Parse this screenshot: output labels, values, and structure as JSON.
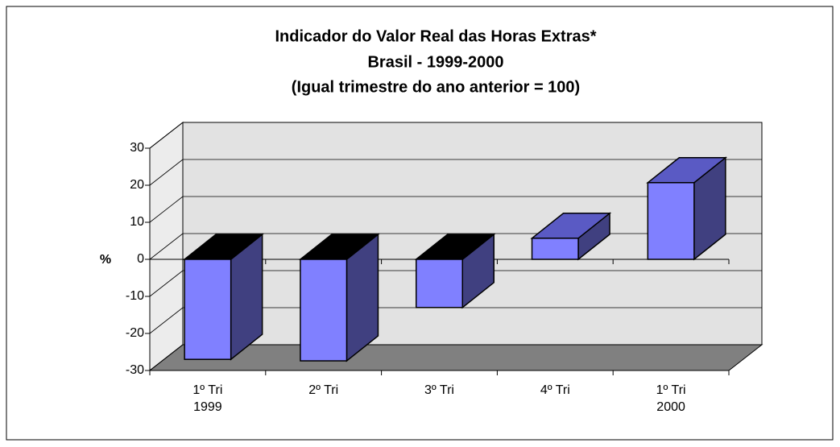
{
  "chart_data": {
    "type": "bar3d",
    "title": "Indicador do Valor Real das Horas Extras*",
    "subtitle": "Brasil - 1999-2000",
    "subtitle2": "(Igual trimestre do ano anterior = 100)",
    "ylabel": "%",
    "categories": [
      "1º Tri\n1999",
      "2º Tri",
      "3º Tri",
      "4º Tri",
      "1º Tri\n2000"
    ],
    "values": [
      -27,
      -27.4,
      -13,
      5.7,
      20.7
    ],
    "color": "#8080ff",
    "ylim": [
      -30,
      30
    ],
    "yticks": [
      -30,
      -20,
      -10,
      0,
      10,
      20,
      30
    ],
    "grid": true
  }
}
